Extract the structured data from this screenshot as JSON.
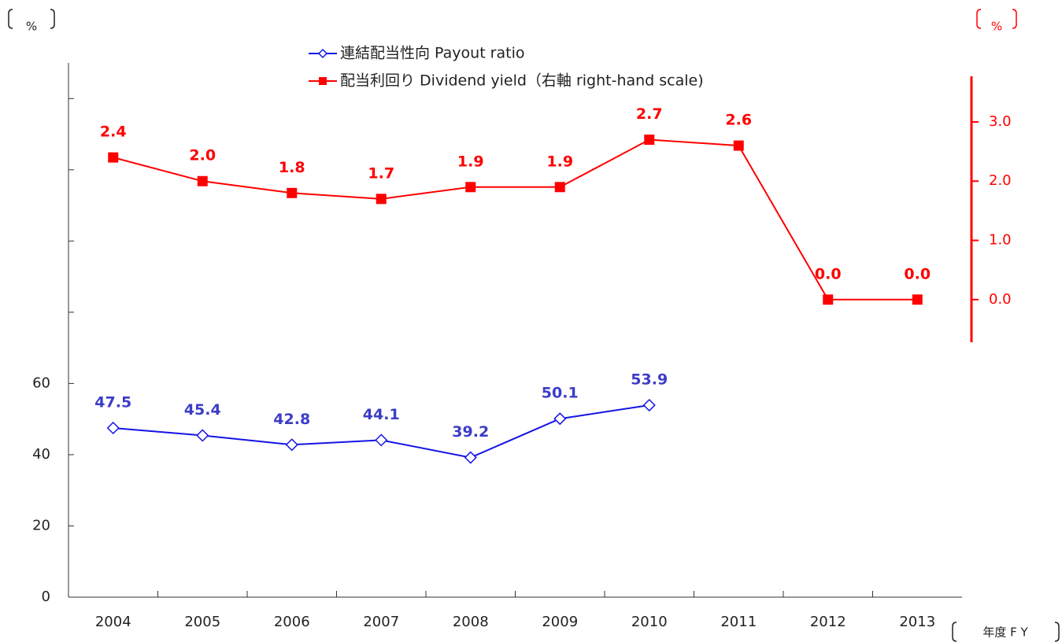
{
  "chart_data": {
    "type": "line",
    "y_unit": "%",
    "y2_unit": "%",
    "x_unit": "年度 F Y",
    "categories": [
      "2004",
      "2005",
      "2006",
      "2007",
      "2008",
      "2009",
      "2010",
      "2011",
      "2012",
      "2013"
    ],
    "series": [
      {
        "name": "連結配当性向 Payout ratio",
        "color": "#1414e6",
        "label_color": "#3c3cc8",
        "marker": "diamond",
        "values": [
          47.5,
          45.4,
          42.8,
          44.1,
          39.2,
          50.1,
          53.9,
          null,
          null,
          null
        ]
      },
      {
        "name": "配当利回り Dividend yield（右軸 right-hand scale)",
        "color": "#ff0000",
        "label_color": "#ff0000",
        "marker": "square",
        "axis": "y2",
        "values": [
          2.4,
          2.0,
          1.8,
          1.7,
          1.9,
          1.9,
          2.7,
          2.6,
          0.0,
          0.0
        ],
        "value_labels": [
          "2.4",
          "2.0",
          "1.8",
          "1.7",
          "1.9",
          "1.9",
          "2.7",
          "2.6",
          "0.0",
          "0.0"
        ]
      }
    ],
    "ylim": [
      0,
      150
    ],
    "yticks": [
      0,
      20,
      40,
      60
    ],
    "yminor_ticks": [
      80,
      100,
      120,
      140
    ],
    "y2lim": [
      -0.72,
      3.77
    ],
    "y2ticks": [
      {
        "value": 0,
        "label": "0.0"
      },
      {
        "value": 1,
        "label": "1.0"
      },
      {
        "value": 2,
        "label": "2.0"
      },
      {
        "value": 3,
        "label": "3.0"
      }
    ],
    "y2_color": "#ff0000"
  }
}
